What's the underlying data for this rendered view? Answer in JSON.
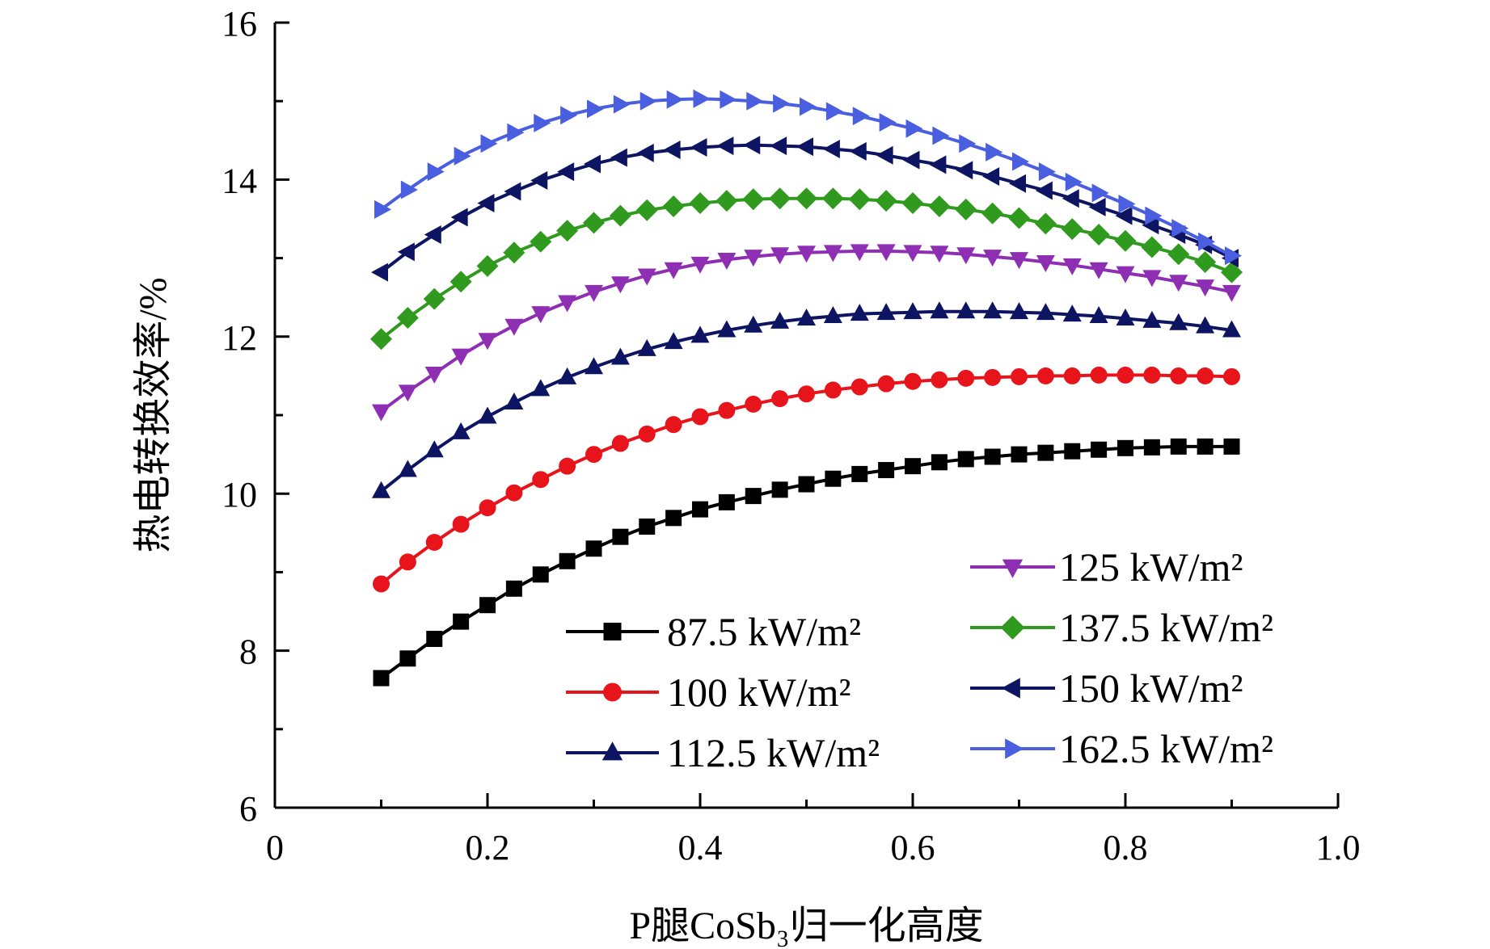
{
  "chart_data": {
    "type": "line",
    "title": "",
    "xlabel": "P腿CoSb₃归一化高度",
    "ylabel": "热电转换效率/%",
    "xlim": [
      0,
      1.0
    ],
    "ylim": [
      6,
      16
    ],
    "x_ticks": [
      "0",
      "0.2",
      "0.4",
      "0.6",
      "0.8",
      "1.0"
    ],
    "y_ticks": [
      "6",
      "8",
      "10",
      "12",
      "14",
      "16"
    ],
    "grid": false,
    "legend_placement": "bottom-right",
    "x": [
      0.1,
      0.125,
      0.15,
      0.175,
      0.2,
      0.225,
      0.25,
      0.275,
      0.3,
      0.325,
      0.35,
      0.375,
      0.4,
      0.425,
      0.45,
      0.475,
      0.5,
      0.525,
      0.55,
      0.575,
      0.6,
      0.625,
      0.65,
      0.675,
      0.7,
      0.725,
      0.75,
      0.775,
      0.8,
      0.825,
      0.85,
      0.875,
      0.9
    ],
    "series": [
      {
        "name": "87.5 kW/m²",
        "color": "#000000",
        "marker": "square",
        "values": [
          7.65,
          7.9,
          8.15,
          8.37,
          8.58,
          8.79,
          8.97,
          9.14,
          9.3,
          9.45,
          9.58,
          9.69,
          9.8,
          9.89,
          9.97,
          10.05,
          10.12,
          10.19,
          10.25,
          10.3,
          10.35,
          10.4,
          10.44,
          10.47,
          10.5,
          10.52,
          10.54,
          10.56,
          10.58,
          10.59,
          10.6,
          10.6,
          10.6
        ]
      },
      {
        "name": "100 kW/m²",
        "color": "#e8141c",
        "marker": "circle",
        "values": [
          8.85,
          9.13,
          9.38,
          9.61,
          9.82,
          10.01,
          10.18,
          10.35,
          10.5,
          10.64,
          10.76,
          10.88,
          10.98,
          11.06,
          11.14,
          11.21,
          11.27,
          11.32,
          11.36,
          11.4,
          11.43,
          11.45,
          11.47,
          11.48,
          11.49,
          11.5,
          11.5,
          11.51,
          11.51,
          11.51,
          11.5,
          11.5,
          11.49
        ]
      },
      {
        "name": "112.5 kW/m²",
        "color": "#0d1462",
        "marker": "triangle-up",
        "values": [
          10.03,
          10.3,
          10.55,
          10.78,
          10.98,
          11.16,
          11.33,
          11.48,
          11.61,
          11.73,
          11.84,
          11.93,
          12.01,
          12.08,
          12.14,
          12.19,
          12.23,
          12.26,
          12.29,
          12.3,
          12.31,
          12.32,
          12.32,
          12.32,
          12.31,
          12.3,
          12.28,
          12.26,
          12.23,
          12.2,
          12.17,
          12.13,
          12.08
        ]
      },
      {
        "name": "125 kW/m²",
        "color": "#8e2fb3",
        "marker": "triangle-down",
        "values": [
          11.05,
          11.3,
          11.53,
          11.76,
          11.96,
          12.14,
          12.3,
          12.44,
          12.57,
          12.68,
          12.78,
          12.86,
          12.93,
          12.98,
          13.02,
          13.05,
          13.07,
          13.08,
          13.09,
          13.09,
          13.08,
          13.07,
          13.05,
          13.02,
          12.99,
          12.95,
          12.91,
          12.86,
          12.81,
          12.76,
          12.7,
          12.64,
          12.57
        ]
      },
      {
        "name": "137.5 kW/m²",
        "color": "#2f9a1e",
        "marker": "diamond",
        "values": [
          11.97,
          12.24,
          12.48,
          12.7,
          12.9,
          13.07,
          13.21,
          13.35,
          13.45,
          13.54,
          13.61,
          13.66,
          13.7,
          13.73,
          13.75,
          13.76,
          13.76,
          13.76,
          13.75,
          13.73,
          13.7,
          13.66,
          13.62,
          13.57,
          13.51,
          13.44,
          13.37,
          13.3,
          13.22,
          13.14,
          13.05,
          12.95,
          12.82
        ]
      },
      {
        "name": "150 kW/m²",
        "color": "#0d1462",
        "marker": "triangle-left",
        "values": [
          12.82,
          13.08,
          13.3,
          13.52,
          13.7,
          13.85,
          13.99,
          14.1,
          14.2,
          14.28,
          14.34,
          14.38,
          14.41,
          14.43,
          14.44,
          14.43,
          14.42,
          14.39,
          14.36,
          14.31,
          14.25,
          14.19,
          14.12,
          14.04,
          13.95,
          13.86,
          13.76,
          13.65,
          13.54,
          13.42,
          13.3,
          13.17,
          13.0
        ]
      },
      {
        "name": "162.5 kW/m²",
        "color": "#4a5fe0",
        "marker": "triangle-right",
        "values": [
          13.62,
          13.87,
          14.1,
          14.3,
          14.46,
          14.6,
          14.72,
          14.82,
          14.9,
          14.96,
          15.0,
          15.02,
          15.03,
          15.02,
          15.0,
          14.97,
          14.93,
          14.87,
          14.81,
          14.73,
          14.65,
          14.56,
          14.46,
          14.35,
          14.23,
          14.1,
          13.97,
          13.83,
          13.69,
          13.54,
          13.38,
          13.21,
          13.03
        ]
      }
    ]
  }
}
